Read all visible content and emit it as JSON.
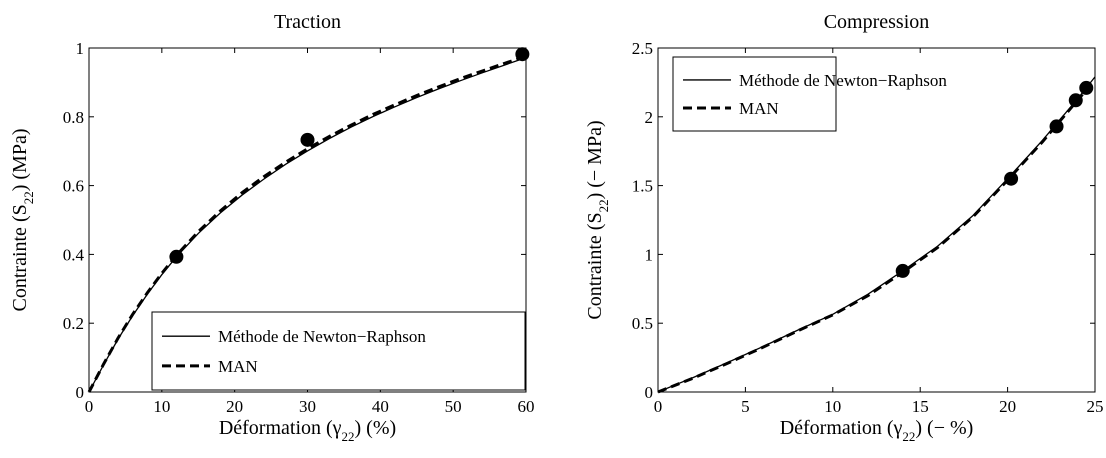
{
  "chart_data": [
    {
      "type": "line",
      "title": "Traction",
      "xlabel": {
        "prefix": "Déformation (",
        "symbol": "γ",
        "sub": "22",
        "suffix": ") (%)"
      },
      "ylabel": {
        "prefix": "Contrainte (S",
        "sub": "22",
        "suffix": ") (MPa)"
      },
      "xlim": [
        0,
        60
      ],
      "ylim": [
        0,
        1
      ],
      "xticks": [
        "0",
        "10",
        "20",
        "30",
        "40",
        "50",
        "60"
      ],
      "yticks": [
        "0",
        "0.2",
        "0.4",
        "0.6",
        "0.8",
        "1"
      ],
      "legend_position": "bottom-right",
      "grid": false,
      "series": [
        {
          "name": "Méthode de Newton−Raphson",
          "style": "solid",
          "x": [
            0,
            2,
            4,
            6,
            8,
            10,
            12,
            15,
            18,
            21,
            24,
            27,
            30,
            33,
            36,
            39,
            42,
            45,
            48,
            51,
            54,
            57,
            60
          ],
          "y": [
            0,
            0.079,
            0.154,
            0.222,
            0.284,
            0.341,
            0.393,
            0.461,
            0.52,
            0.572,
            0.619,
            0.662,
            0.701,
            0.737,
            0.77,
            0.801,
            0.829,
            0.856,
            0.881,
            0.905,
            0.928,
            0.95,
            0.972
          ]
        },
        {
          "name": "MAN",
          "style": "dashed",
          "x": [
            0,
            2,
            4,
            6,
            8,
            10,
            12,
            15,
            18,
            21,
            24,
            27,
            30,
            33,
            36,
            39,
            42,
            45,
            48,
            51,
            54,
            57,
            60
          ],
          "y": [
            0,
            0.081,
            0.157,
            0.226,
            0.288,
            0.345,
            0.397,
            0.466,
            0.526,
            0.579,
            0.626,
            0.668,
            0.707,
            0.743,
            0.776,
            0.807,
            0.835,
            0.862,
            0.887,
            0.911,
            0.933,
            0.955,
            0.976
          ]
        }
      ],
      "markers": {
        "x": [
          12,
          30,
          59.5
        ],
        "y": [
          0.393,
          0.733,
          0.982
        ]
      }
    },
    {
      "type": "line",
      "title": "Compression",
      "xlabel": {
        "prefix": "Déformation (",
        "symbol": "γ",
        "sub": "22",
        "suffix": ") (− %)"
      },
      "ylabel": {
        "prefix": "Contrainte (S",
        "sub": "22",
        "suffix": ") (− MPa)"
      },
      "xlim": [
        0,
        25
      ],
      "ylim": [
        0,
        2.5
      ],
      "xticks": [
        "0",
        "5",
        "10",
        "15",
        "20",
        "25"
      ],
      "yticks": [
        "0",
        "0.5",
        "1",
        "1.5",
        "2",
        "2.5"
      ],
      "legend_position": "top-left",
      "grid": false,
      "series": [
        {
          "name": "Méthode de Newton−Raphson",
          "style": "solid",
          "x": [
            0,
            2,
            4,
            6,
            8,
            10,
            12,
            14,
            16,
            18,
            20,
            21,
            22,
            23,
            24,
            25
          ],
          "y": [
            0,
            0.105,
            0.215,
            0.33,
            0.45,
            0.565,
            0.71,
            0.88,
            1.06,
            1.28,
            1.55,
            1.69,
            1.83,
            1.98,
            2.13,
            2.29
          ]
        },
        {
          "name": "MAN",
          "style": "dashed",
          "x": [
            0,
            2,
            4,
            6,
            8,
            10,
            12,
            14,
            16,
            18,
            20,
            21,
            22,
            23,
            24,
            24.6
          ],
          "y": [
            0,
            0.1,
            0.21,
            0.325,
            0.445,
            0.56,
            0.7,
            0.87,
            1.05,
            1.27,
            1.54,
            1.68,
            1.82,
            1.97,
            2.12,
            2.21
          ]
        }
      ],
      "markers": {
        "x": [
          14,
          20.2,
          22.8,
          23.9,
          24.5
        ],
        "y": [
          0.88,
          1.55,
          1.93,
          2.12,
          2.21
        ]
      }
    }
  ]
}
